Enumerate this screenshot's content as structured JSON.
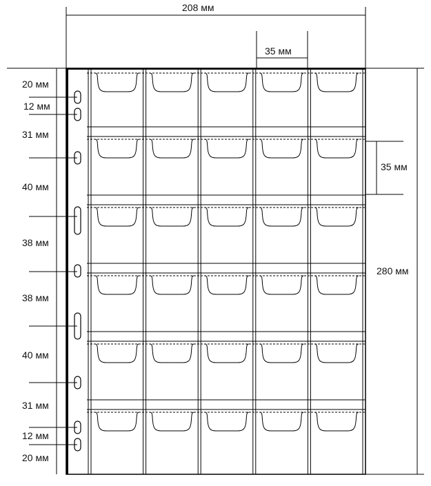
{
  "dimensions": {
    "sheet_width": "208 мм",
    "pocket_width": "35 мм",
    "pocket_height": "35 мм",
    "sheet_height": "280 мм",
    "hole_spacings": [
      "20 мм",
      "12 мм",
      "31 мм",
      "40 мм",
      "38 мм",
      "38 мм",
      "40 мм",
      "31 мм",
      "12 мм",
      "20 мм"
    ]
  },
  "grid": {
    "columns": 5,
    "rows": 6
  },
  "colors": {
    "line": "#000000",
    "background": "#ffffff"
  }
}
